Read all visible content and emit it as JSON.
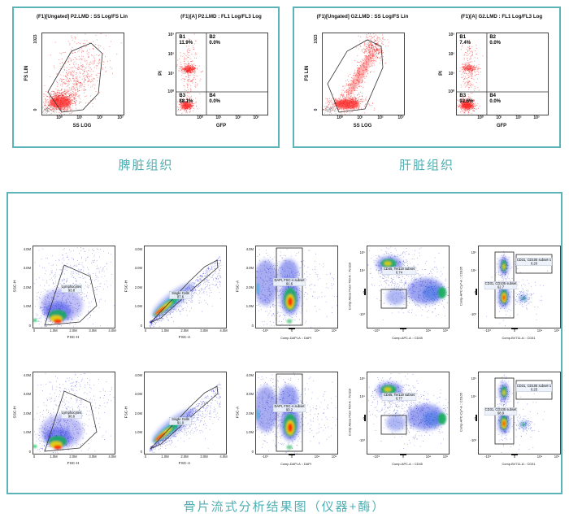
{
  "captions": {
    "spleen": "脾脏组织",
    "liver": "肝脏组织",
    "bone": "骨片流式分析结果图（仪器+酶）"
  },
  "colors": {
    "teal_border": "#5bb5b8",
    "teal_text": "#4fafb3",
    "dot_red": "#ee1111",
    "density_blue": "#2222cc"
  },
  "chart_data": [
    {
      "id": "spleen-fs",
      "type": "scatter",
      "style": "fs-spleen",
      "seed": 11,
      "title": "(F1)[Ungated] P2.LMD : SS Log/FS Lin",
      "xlabel": "SS LOG",
      "ylabel": "FS LIN",
      "axes": "fslin",
      "xticks": [
        "10⁰",
        "10¹",
        "10²",
        "10³"
      ],
      "yticks": [
        "1023",
        "0"
      ]
    },
    {
      "id": "spleen-quad",
      "type": "quadrant",
      "style": "quad-spleen",
      "seed": 22,
      "title": "(F1)[A] P2.LMD : FL1 Log/FL3 Log",
      "xlabel": "GFP",
      "ylabel": "PI",
      "axes": "quad",
      "xticks": [
        "10⁰",
        "10¹",
        "10²",
        "10³"
      ],
      "yticks": [
        "10³",
        "10²",
        "10¹",
        "10⁰"
      ],
      "quadrants": [
        {
          "label": "B1",
          "percent": "11.9%"
        },
        {
          "label": "B2",
          "percent": "0.0%"
        },
        {
          "label": "B3",
          "percent": "88.1%"
        },
        {
          "label": "B4",
          "percent": "0.0%"
        }
      ]
    },
    {
      "id": "liver-fs",
      "type": "scatter",
      "style": "fs-liver",
      "seed": 33,
      "title": "(F1)[Ungated] G2.LMD : SS Log/FS Lin",
      "xlabel": "SS LOG",
      "ylabel": "FS LIN",
      "axes": "fslin",
      "xticks": [
        "10⁰",
        "10¹",
        "10²",
        "10³"
      ],
      "yticks": [
        "1023",
        "0"
      ]
    },
    {
      "id": "liver-quad",
      "type": "quadrant",
      "style": "quad-liver",
      "seed": 44,
      "title": "(F1)[A] G2.LMD : FL1 Log/FL3 Log",
      "xlabel": "GFP",
      "ylabel": "PI",
      "axes": "quad",
      "xticks": [
        "10⁰",
        "10¹",
        "10²",
        "10³"
      ],
      "yticks": [
        "10³",
        "10²",
        "10¹",
        "10⁰"
      ],
      "quadrants": [
        {
          "label": "B1",
          "percent": "7.4%"
        },
        {
          "label": "B2",
          "percent": "0.0%"
        },
        {
          "label": "B3",
          "percent": "92.6%"
        },
        {
          "label": "B4",
          "percent": "0.0%"
        }
      ]
    },
    {
      "id": "r1c1",
      "type": "density",
      "style": "lymph",
      "seed": 101,
      "xlabel": "FSC-H",
      "ylabel": "SSC-H",
      "axes": "linlin",
      "xticks": [
        "0",
        "1.0M",
        "2.0M",
        "3.0M",
        "4.0M"
      ],
      "yticks": [
        "0",
        "1.0M",
        "2.0M",
        "3.0M",
        "4.0M"
      ],
      "gates": [
        {
          "label": "Lymphocytes",
          "percent": "93.8"
        }
      ]
    },
    {
      "id": "r1c2",
      "type": "density",
      "style": "singlet",
      "seed": 102,
      "xlabel": "FSC-A",
      "ylabel": "FSC-H",
      "axes": "linlin",
      "xticks": [
        "0",
        "1.0M",
        "2.0M",
        "3.0M",
        "4.0M"
      ],
      "yticks": [
        "0",
        "1.0M",
        "2.0M",
        "3.0M",
        "4.0M"
      ],
      "gates": [
        {
          "label": "Single Cells",
          "percent": "87.6"
        }
      ]
    },
    {
      "id": "r1c3",
      "type": "density",
      "style": "dapi",
      "seed": 103,
      "xlabel": "Comp-DAPI-A :: DAPI",
      "ylabel": "FSC-A",
      "axes": "biex-x",
      "xticks": [
        "-10³",
        "0",
        "10⁴",
        "10⁵"
      ],
      "yticks": [
        "0",
        "1.0M",
        "2.0M",
        "3.0M",
        "4.0M"
      ],
      "gates": [
        {
          "label": "DAPI, FSC-A subset",
          "percent": "91.6"
        }
      ]
    },
    {
      "id": "r1c4",
      "type": "density",
      "style": "cd45",
      "seed": 104,
      "xlabel": "Comp-APC-A :: CD45",
      "ylabel": "Comp-Alexa Fluor 700-A :: Ter119",
      "axes": "biex-xy",
      "xticks": [
        "-10³",
        "0",
        "10⁴",
        "10⁵"
      ],
      "yticks": [
        "10⁵",
        "10⁴",
        "0",
        "-10³"
      ],
      "gates": [
        {
          "label": "CD45, Ter119 subset",
          "percent": "0.74"
        }
      ]
    },
    {
      "id": "r1c5",
      "type": "density",
      "style": "cd31",
      "seed": 105,
      "xlabel": "Comp-BV711-A :: CD31",
      "ylabel": "Comp-APC-Cy7-A :: CD105",
      "axes": "biex-xy",
      "xticks": [
        "-10³",
        "0",
        "10⁴",
        "10⁵"
      ],
      "yticks": [
        "10⁵",
        "10⁴",
        "0",
        "-10³"
      ],
      "gates": [
        {
          "label": "CD31, CD105 subset",
          "percent": "62.7"
        },
        {
          "label": "CD31, CD105 subset-1",
          "percent": "0.20"
        }
      ]
    },
    {
      "id": "r2c1",
      "type": "density",
      "style": "lymph",
      "seed": 201,
      "xlabel": "FSC-H",
      "ylabel": "SSC-H",
      "axes": "linlin",
      "xticks": [
        "0",
        "1.0M",
        "2.0M",
        "3.0M",
        "4.0M"
      ],
      "yticks": [
        "0",
        "1.0M",
        "2.0M",
        "3.0M",
        "4.0M"
      ],
      "gates": [
        {
          "label": "Lymphocytes",
          "percent": "90.6"
        }
      ]
    },
    {
      "id": "r2c2",
      "type": "density",
      "style": "singlet",
      "seed": 202,
      "xlabel": "FSC-A",
      "ylabel": "FSC-H",
      "axes": "linlin",
      "xticks": [
        "0",
        "1.0M",
        "2.0M",
        "3.0M",
        "4.0M"
      ],
      "yticks": [
        "0",
        "1.0M",
        "2.0M",
        "3.0M",
        "4.0M"
      ],
      "gates": [
        {
          "label": "Single Cells",
          "percent": "91.0"
        }
      ]
    },
    {
      "id": "r2c3",
      "type": "density",
      "style": "dapi",
      "seed": 203,
      "xlabel": "Comp-DAPI-A :: DAPI",
      "ylabel": "FSC-A",
      "axes": "biex-x",
      "xticks": [
        "-10³",
        "0",
        "10⁴",
        "10⁵"
      ],
      "yticks": [
        "0",
        "1.0M",
        "2.0M",
        "3.0M",
        "4.0M"
      ],
      "gates": [
        {
          "label": "DAPI, FSC-A subset",
          "percent": "93.2"
        }
      ]
    },
    {
      "id": "r2c4",
      "type": "density",
      "style": "cd45",
      "seed": 204,
      "xlabel": "Comp-APC-A :: CD45",
      "ylabel": "Comp-Alexa Fluor 700-A :: Ter119",
      "axes": "biex-xy",
      "xticks": [
        "-10³",
        "0",
        "10⁴",
        "10⁵"
      ],
      "yticks": [
        "10⁵",
        "10⁴",
        "0",
        "-10³"
      ],
      "gates": [
        {
          "label": "CD45, Ter119 subset",
          "percent": "0.77"
        }
      ]
    },
    {
      "id": "r2c5",
      "type": "density",
      "style": "cd31",
      "seed": 205,
      "xlabel": "Comp-BV711-A :: CD31",
      "ylabel": "Comp-APC-Cy7-A :: CD105",
      "axes": "biex-xy",
      "xticks": [
        "-10³",
        "0",
        "10⁴",
        "10⁵"
      ],
      "yticks": [
        "10⁵",
        "10⁴",
        "0",
        "-10³"
      ],
      "gates": [
        {
          "label": "CD31, CD105 subset",
          "percent": "68.9"
        },
        {
          "label": "CD31, CD105 subset-1",
          "percent": "0.25"
        }
      ]
    }
  ]
}
